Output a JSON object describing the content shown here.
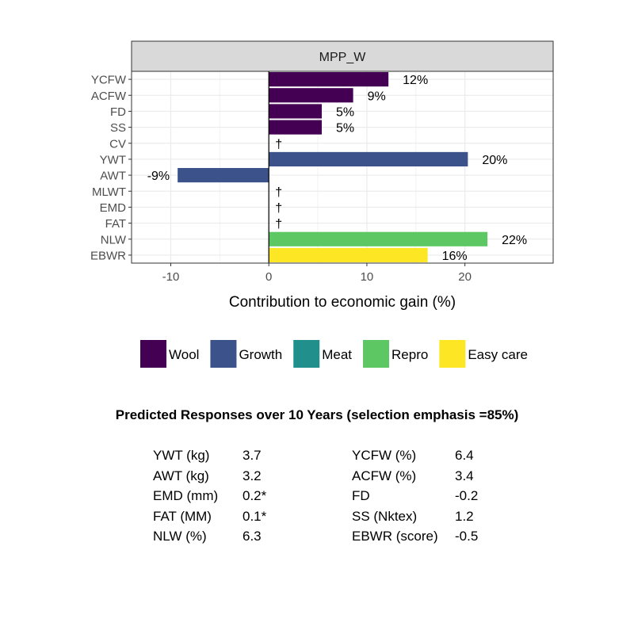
{
  "chart_data": {
    "type": "bar",
    "orientation": "horizontal",
    "facet_title": "MPP_W",
    "xlabel": "Contribution to economic gain (%)",
    "xlim": [
      -14,
      29
    ],
    "xticks": [
      -10,
      0,
      10,
      20
    ],
    "grid": true,
    "legend_position": "bottom",
    "legend": [
      {
        "name": "Wool",
        "color": "#440154"
      },
      {
        "name": "Growth",
        "color": "#3B528B"
      },
      {
        "name": "Meat",
        "color": "#21908C"
      },
      {
        "name": "Repro",
        "color": "#5DC863"
      },
      {
        "name": "Easy care",
        "color": "#FDE725"
      }
    ],
    "bars": [
      {
        "trait": "YCFW",
        "value": 12.2,
        "group": "Wool",
        "label": "12%"
      },
      {
        "trait": "ACFW",
        "value": 8.6,
        "group": "Wool",
        "label": "9%"
      },
      {
        "trait": "FD",
        "value": 5.4,
        "group": "Wool",
        "label": "5%"
      },
      {
        "trait": "SS",
        "value": 5.4,
        "group": "Wool",
        "label": "5%"
      },
      {
        "trait": "CV",
        "value": 0,
        "group": "Wool",
        "label": "†"
      },
      {
        "trait": "YWT",
        "value": 20.3,
        "group": "Growth",
        "label": "20%"
      },
      {
        "trait": "AWT",
        "value": -9.3,
        "group": "Growth",
        "label": "-9%"
      },
      {
        "trait": "MLWT",
        "value": 0,
        "group": "Growth",
        "label": "†"
      },
      {
        "trait": "EMD",
        "value": 0,
        "group": "Meat",
        "label": "†"
      },
      {
        "trait": "FAT",
        "value": 0,
        "group": "Meat",
        "label": "†"
      },
      {
        "trait": "NLW",
        "value": 22.3,
        "group": "Repro",
        "label": "22%"
      },
      {
        "trait": "EBWR",
        "value": 16.2,
        "group": "Easy care",
        "label": "16%"
      }
    ]
  },
  "responses": {
    "title": "Predicted Responses over 10 Years (selection emphasis =85%)",
    "left": [
      {
        "name": "YWT (kg)",
        "value": "3.7"
      },
      {
        "name": "AWT (kg)",
        "value": "3.2"
      },
      {
        "name": "EMD (mm)",
        "value": "0.2*"
      },
      {
        "name": "FAT (MM)",
        "value": "0.1*"
      },
      {
        "name": "NLW (%)",
        "value": "6.3"
      }
    ],
    "right": [
      {
        "name": "YCFW (%)",
        "value": "6.4"
      },
      {
        "name": "ACFW (%)",
        "value": "3.4"
      },
      {
        "name": "FD",
        "value": "-0.2"
      },
      {
        "name": "SS (Nktex)",
        "value": "1.2"
      },
      {
        "name": "EBWR (score)",
        "value": "-0.5"
      }
    ]
  }
}
